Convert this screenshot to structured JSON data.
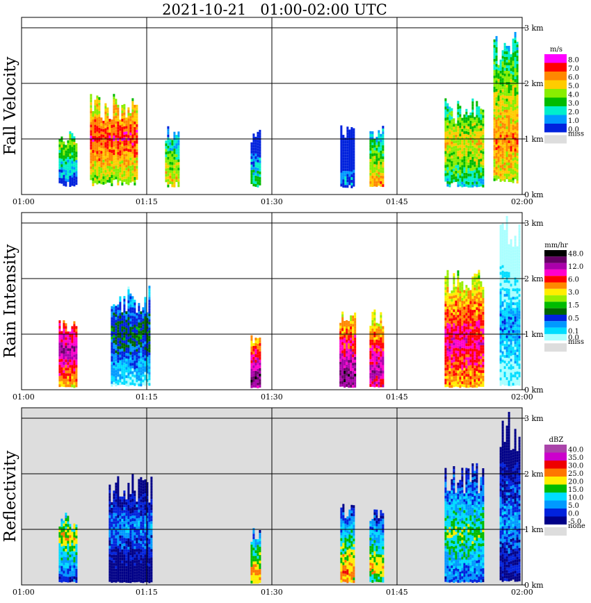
{
  "title": "2021-10-21   01:00-02:00 UTC",
  "chart_data": [
    {
      "type": "heatmap",
      "ylabel": "Fall Velocity",
      "x_ticks": [
        "01:00",
        "01:15",
        "01:30",
        "01:45",
        "02:00"
      ],
      "y_ticks": [
        "0 km",
        "1 km",
        "2 km",
        "3 km"
      ],
      "unit": "m/s",
      "colorbar": [
        {
          "label": "8.0",
          "color": "#ff00ff"
        },
        {
          "label": "7.0",
          "color": "#ff0000"
        },
        {
          "label": "6.0",
          "color": "#ff8800"
        },
        {
          "label": "5.0",
          "color": "#ffcc00"
        },
        {
          "label": "4.0",
          "color": "#88ee00"
        },
        {
          "label": "3.0",
          "color": "#00bb00"
        },
        {
          "label": "2.0",
          "color": "#00eecc"
        },
        {
          "label": "1.0",
          "color": "#0099ff"
        },
        {
          "label": "0.0",
          "color": "#0022dd"
        }
      ],
      "miss_label": "miss",
      "miss_color": "#dddddd",
      "background": "#ffffff",
      "columns": [
        {
          "t": 5.5,
          "w": 1.5,
          "top": 1.0,
          "low": 1.3,
          "mid": 0.85,
          "core": 4
        },
        {
          "t": 11,
          "w": 5,
          "top": 1.55,
          "low": 1.4,
          "mid": 1.0,
          "core": 7
        },
        {
          "t": 18,
          "w": 1,
          "top": 1.1,
          "low": 1.2,
          "mid": 0.3,
          "core": 5
        },
        {
          "t": 28,
          "w": 0.5,
          "top": 1.0,
          "low": 1.0,
          "mid": 0.2,
          "core": 3
        },
        {
          "t": 39,
          "w": 1,
          "top": 1.1,
          "low": 1.0,
          "mid": 0.25,
          "core": 1
        },
        {
          "t": 42.5,
          "w": 1,
          "top": 1.1,
          "low": 1.0,
          "mid": 0.2,
          "core": 6
        },
        {
          "t": 53,
          "w": 4,
          "top": 1.5,
          "low": 1.2,
          "mid": 0.9,
          "core": 5
        },
        {
          "t": 58,
          "w": 2.3,
          "top": 2.6,
          "low": 1.5,
          "mid": 0.95,
          "core": 6
        }
      ]
    },
    {
      "type": "heatmap",
      "ylabel": "Rain Intensity",
      "x_ticks": [
        "01:00",
        "01:15",
        "01:30",
        "01:45",
        "02:00"
      ],
      "y_ticks": [
        "0 km",
        "1 km",
        "2 km",
        "3 km"
      ],
      "unit": "mm/hr",
      "colorbar": [
        {
          "label": "48.0",
          "color": "#000000"
        },
        {
          "label": "",
          "color": "#660066"
        },
        {
          "label": "12.0",
          "color": "#aa00aa"
        },
        {
          "label": "",
          "color": "#ff00cc"
        },
        {
          "label": "6.0",
          "color": "#ff0000"
        },
        {
          "label": "",
          "color": "#ff8800"
        },
        {
          "label": "3.0",
          "color": "#ffee00"
        },
        {
          "label": "",
          "color": "#99ee00"
        },
        {
          "label": "1.5",
          "color": "#00bb00"
        },
        {
          "label": "",
          "color": "#006600"
        },
        {
          "label": "0.5",
          "color": "#0022dd"
        },
        {
          "label": "",
          "color": "#0099ff"
        },
        {
          "label": "0.1",
          "color": "#00ddff"
        },
        {
          "label": "0.0",
          "color": "#aaffff"
        }
      ],
      "miss_label": "miss",
      "miss_color": "#dddddd",
      "background": "#ffffff",
      "columns": [
        {
          "t": 5.5,
          "w": 1.5,
          "top": 1.1,
          "low": 0.3,
          "mid": 0.7,
          "core": 11
        },
        {
          "t": 13,
          "w": 4,
          "top": 1.6,
          "low": 0.5,
          "mid": 1.0,
          "core": 4
        },
        {
          "t": 28,
          "w": 0.5,
          "top": 0.9,
          "low": 0.2,
          "mid": 0.2,
          "core": 12
        },
        {
          "t": 39,
          "w": 1.2,
          "top": 1.3,
          "low": 0.3,
          "mid": 0.2,
          "core": 12
        },
        {
          "t": 42.5,
          "w": 1,
          "top": 1.3,
          "low": 0.3,
          "mid": 0.3,
          "core": 11
        },
        {
          "t": 53,
          "w": 4,
          "top": 1.9,
          "low": 0.3,
          "mid": 0.8,
          "core": 10
        },
        {
          "t": 58.5,
          "w": 1.8,
          "top": 2.8,
          "low": 0.5,
          "mid": 1.1,
          "core": 2
        }
      ]
    },
    {
      "type": "heatmap",
      "ylabel": "Reflectivity",
      "x_ticks": [
        "01:00",
        "01:15",
        "01:30",
        "01:45",
        "02:00"
      ],
      "y_ticks": [
        "0 km",
        "1 km",
        "2 km",
        "3 km"
      ],
      "unit": "dBZ",
      "colorbar": [
        {
          "label": "40.0",
          "color": "#aa44aa"
        },
        {
          "label": "35.0",
          "color": "#cc00cc"
        },
        {
          "label": "30.0",
          "color": "#ee0000"
        },
        {
          "label": "25.0",
          "color": "#ff7700"
        },
        {
          "label": "20.0",
          "color": "#ffee00"
        },
        {
          "label": "15.0",
          "color": "#00bb00"
        },
        {
          "label": "10.0",
          "color": "#00ddff"
        },
        {
          "label": "5.0",
          "color": "#0099ff"
        },
        {
          "label": "0.0",
          "color": "#0022dd"
        },
        {
          "label": "-5.0",
          "color": "#000088"
        }
      ],
      "miss_label": "none",
      "miss_color": "#dddddd",
      "background": "#dddddd",
      "columns": [
        {
          "t": 5.5,
          "w": 1.5,
          "top": 1.1,
          "low": 0.3,
          "mid": 0.85,
          "core": 5
        },
        {
          "t": 13,
          "w": 4.5,
          "top": 1.7,
          "low": 0.3,
          "mid": 1.0,
          "core": 2
        },
        {
          "t": 28,
          "w": 0.5,
          "top": 0.9,
          "low": 0.2,
          "mid": 0.2,
          "core": 6
        },
        {
          "t": 39,
          "w": 1,
          "top": 1.3,
          "low": 0.3,
          "mid": 0.2,
          "core": 6
        },
        {
          "t": 42.5,
          "w": 1,
          "top": 1.3,
          "low": 0.3,
          "mid": 0.3,
          "core": 5
        },
        {
          "t": 53,
          "w": 4,
          "top": 1.9,
          "low": 0.3,
          "mid": 0.9,
          "core": 4
        },
        {
          "t": 58.5,
          "w": 1.8,
          "top": 2.8,
          "low": 0.5,
          "mid": 1.1,
          "core": 2
        }
      ]
    }
  ]
}
